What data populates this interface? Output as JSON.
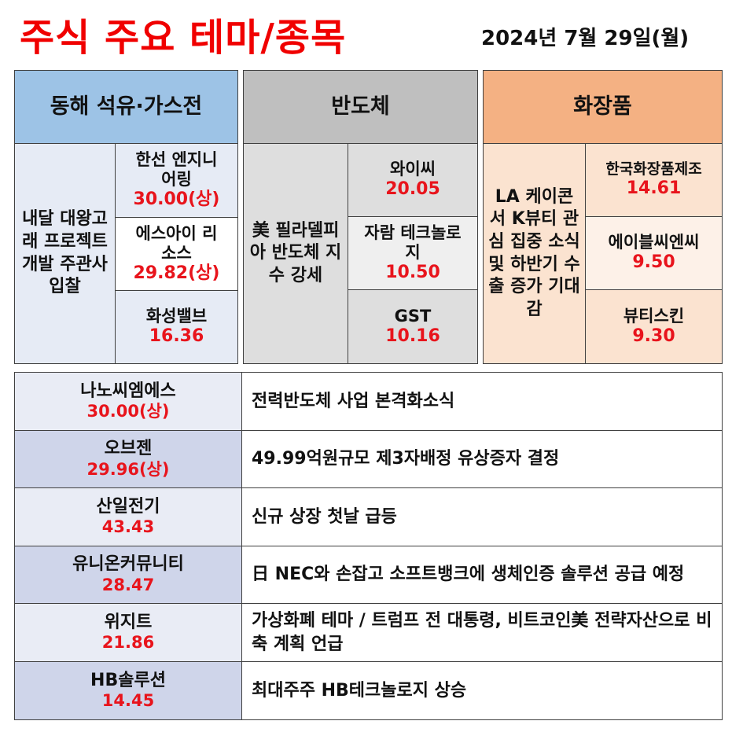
{
  "title": "주식 주요 테마/종목",
  "date": "2024년 7월 29일(월)",
  "theme_colors": {
    "energy_header": "#9dc3e6",
    "semiconductor_header": "#bfbfbf",
    "cosmetics_header": "#f4b183",
    "value_text": "#e8141c"
  },
  "themes": [
    {
      "header": "동해 석유·가스전",
      "reason": "내달 대왕고래 프로젝트 개발 주관사 입찰",
      "stocks": [
        {
          "name": "한선 엔지니어링",
          "value": "30.00(상)"
        },
        {
          "name": "에스아이 리소스",
          "value": "29.82(상)"
        },
        {
          "name": "화성밸브",
          "value": "16.36"
        }
      ]
    },
    {
      "header": "반도체",
      "reason": "美 필라델피아 반도체 지수 강세",
      "stocks": [
        {
          "name": "와이씨",
          "value": "20.05"
        },
        {
          "name": "자람 테크놀로지",
          "value": "10.50"
        },
        {
          "name": "GST",
          "value": "10.16"
        }
      ]
    },
    {
      "header": "화장품",
      "reason": "LA 케이콘서 K뷰티 관심 집중 소식 및 하반기 수출 증가 기대감",
      "stocks": [
        {
          "name": "한국화장품제조",
          "value": "14.61"
        },
        {
          "name": "에이블씨엔씨",
          "value": "9.50"
        },
        {
          "name": "뷰티스킨",
          "value": "9.30"
        }
      ]
    }
  ],
  "individual_stocks": [
    {
      "name": "나노씨엠에스",
      "value": "30.00(상)",
      "reason": "전력반도체 사업 본격화소식"
    },
    {
      "name": "오브젠",
      "value": "29.96(상)",
      "reason": "49.99억원규모 제3자배정 유상증자 결정"
    },
    {
      "name": "산일전기",
      "value": "43.43",
      "reason": "신규 상장 첫날 급등"
    },
    {
      "name": "유니온커뮤니티",
      "value": "28.47",
      "reason": "日 NEC와 손잡고 소프트뱅크에 생체인증 솔루션 공급 예정"
    },
    {
      "name": "위지트",
      "value": "21.86",
      "reason": "가상화폐 테마 / 트럼프 전 대통령, 비트코인美 전략자산으로 비축 계획 언급"
    },
    {
      "name": "HB솔루션",
      "value": "14.45",
      "reason": "최대주주 HB테크놀로지 상승"
    }
  ]
}
